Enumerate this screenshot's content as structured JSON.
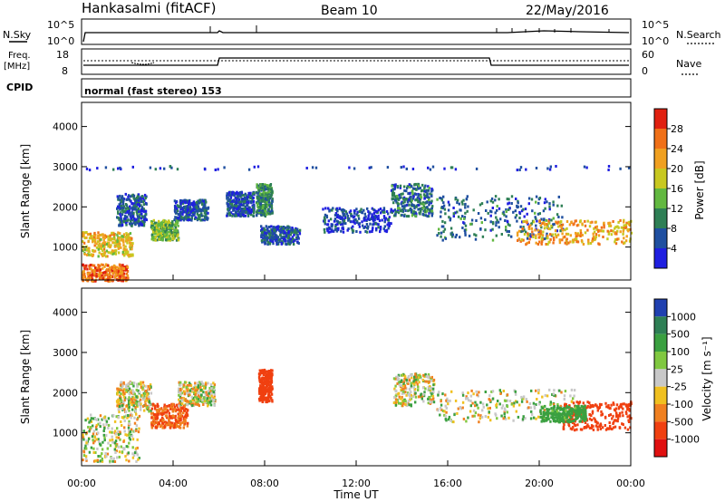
{
  "header": {
    "station": "Hankasalmi (fitACF)",
    "beam": "Beam 10",
    "date": "22/May/2016"
  },
  "strips": {
    "nsky_label": "N.Sky",
    "nsky_ticks": [
      "10^5",
      "10^0"
    ],
    "nsearch_label": "N.Search",
    "nsearch_ticks": [
      "10^5",
      "10^0"
    ],
    "freq_label": "Freq.",
    "freq_unit": "[MHz]",
    "freq_ticks": [
      "18",
      "8"
    ],
    "nave_label": "Nave",
    "nave_ticks": [
      "60",
      "0"
    ],
    "cpid_label": "CPID",
    "cpid_text": "normal (fast stereo) 153"
  },
  "xaxis": {
    "title": "Time UT",
    "ticks": [
      "00:00",
      "04:00",
      "08:00",
      "12:00",
      "16:00",
      "20:00",
      "00:00"
    ]
  },
  "yaxis": {
    "title": "Slant Range [km]",
    "ticks": [
      "1000",
      "2000",
      "3000",
      "4000"
    ]
  },
  "power_scale": {
    "title": "Power [dB]",
    "labels": [
      "4",
      "8",
      "12",
      "16",
      "20",
      "24",
      "28"
    ],
    "colors": [
      "#1f1fe0",
      "#1f4fa0",
      "#2e7f55",
      "#62b840",
      "#c8c820",
      "#f0a020",
      "#f07018",
      "#e02010"
    ]
  },
  "velocity_scale": {
    "title": "Velocity [m s⁻¹]",
    "labels": [
      "1000",
      "500",
      "100",
      "25",
      "-25",
      "-100",
      "-500",
      "-1000"
    ],
    "colors": [
      "#2040b0",
      "#2e7f55",
      "#3aa040",
      "#80c840",
      "#c8c8c8",
      "#f0c020",
      "#f08020",
      "#f04010",
      "#e01010"
    ]
  },
  "chart_data": {
    "type": "heatmap",
    "title": "Hankasalmi (fitACF) Beam 10 22/May/2016",
    "xlabel": "Time UT",
    "ylabel": "Slant Range [km]",
    "xlim": [
      "00:00",
      "24:00"
    ],
    "ylim": [
      180,
      4600
    ],
    "panels": [
      {
        "name": "Power [dB]",
        "colorbar_range": [
          0,
          32
        ],
        "echo_regions": [
          {
            "t": [
              0.0,
              2.2
            ],
            "range_km": [
              800,
              1400
            ],
            "level": 20
          },
          {
            "t": [
              0.0,
              2.0
            ],
            "range_km": [
              180,
              600
            ],
            "level": 26
          },
          {
            "t": [
              1.5,
              2.8
            ],
            "range_km": [
              1550,
              2350
            ],
            "level": 6
          },
          {
            "t": [
              3.0,
              4.2
            ],
            "range_km": [
              1200,
              1700
            ],
            "level": 14
          },
          {
            "t": [
              4.0,
              5.5
            ],
            "range_km": [
              1700,
              2200
            ],
            "level": 6
          },
          {
            "t": [
              6.3,
              7.5
            ],
            "range_km": [
              1800,
              2400
            ],
            "level": 5
          },
          {
            "t": [
              7.6,
              8.3
            ],
            "range_km": [
              1800,
              2600
            ],
            "level": 10
          },
          {
            "t": [
              7.8,
              9.5
            ],
            "range_km": [
              1100,
              1550
            ],
            "level": 6
          },
          {
            "t": [
              10.5,
              13.5
            ],
            "range_km": [
              1400,
              2000
            ],
            "level": 5
          },
          {
            "t": [
              13.5,
              15.3
            ],
            "range_km": [
              1800,
              2600
            ],
            "level": 8
          },
          {
            "t": [
              15.5,
              21.0
            ],
            "range_km": [
              1200,
              2300
            ],
            "level": 8
          },
          {
            "t": [
              19.0,
              24.0
            ],
            "range_km": [
              1100,
              1700
            ],
            "level": 22
          },
          {
            "t": [
              0.0,
              24.0
            ],
            "range_km": [
              2950,
              3050
            ],
            "level": 4
          }
        ]
      },
      {
        "name": "Velocity [m s⁻¹]",
        "colorbar_range": [
          -1000,
          1000
        ],
        "echo_regions": [
          {
            "t": [
              0.0,
              2.5
            ],
            "range_km": [
              300,
              1500
            ],
            "velocity": 0
          },
          {
            "t": [
              1.5,
              3.0
            ],
            "range_km": [
              1550,
              2300
            ],
            "velocity": 0
          },
          {
            "t": [
              3.0,
              4.6
            ],
            "range_km": [
              1150,
              1750
            ],
            "velocity": -300
          },
          {
            "t": [
              4.2,
              5.8
            ],
            "range_km": [
              1700,
              2300
            ],
            "velocity": 0
          },
          {
            "t": [
              7.7,
              8.3
            ],
            "range_km": [
              1800,
              2600
            ],
            "velocity": -500
          },
          {
            "t": [
              13.6,
              15.4
            ],
            "range_km": [
              1700,
              2500
            ],
            "velocity": 0
          },
          {
            "t": [
              15.5,
              21.5
            ],
            "range_km": [
              1300,
              2100
            ],
            "velocity": 0
          },
          {
            "t": [
              21.0,
              24.0
            ],
            "range_km": [
              1100,
              1800
            ],
            "velocity": -400
          },
          {
            "t": [
              20.0,
              22.0
            ],
            "range_km": [
              1300,
              1700
            ],
            "velocity": 150
          }
        ]
      }
    ]
  }
}
